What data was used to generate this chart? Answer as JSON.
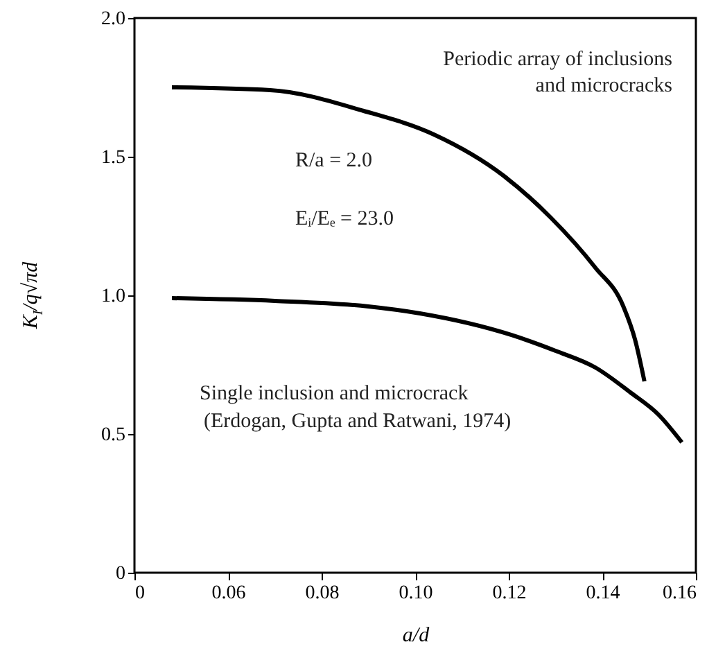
{
  "chart_data": {
    "type": "line",
    "xlabel": "a/d",
    "ylabel": "K$_{I}$/q√πd",
    "x": [
      0.048,
      0.069,
      0.089,
      0.104,
      0.119,
      0.129,
      0.1385,
      0.1445,
      0.147,
      0.149
    ],
    "series": [
      {
        "name": "Periodic array of inclusions and microcracks",
        "color": "#000000",
        "values": [
          1.75,
          1.74,
          1.665,
          1.58,
          1.43,
          1.28,
          1.1,
          0.96,
          0.84,
          0.69
        ]
      },
      {
        "name": "Single inclusion and microcrack",
        "color": "#000000",
        "x": [
          0.048,
          0.07,
          0.09,
          0.101,
          0.1206,
          0.13,
          0.1385,
          0.146,
          0.152,
          0.157
        ],
        "values": [
          0.99,
          0.98,
          0.96,
          0.935,
          0.857,
          0.8,
          0.74,
          0.65,
          0.57,
          0.47
        ]
      }
    ],
    "annotations": [
      "R/a = 2.0",
      "Eᵢ/Eₑ = 23.0",
      "(Erdogan, Gupta and Ratwani, 1974)"
    ],
    "xlim": [
      0.04,
      0.16
    ],
    "xticks": [
      {
        "value": 0.04,
        "label": "0"
      },
      0.06,
      0.08,
      {
        "value": 0.1,
        "label": "0.10"
      },
      0.12,
      0.14,
      0.16
    ],
    "ylim": [
      0,
      2
    ],
    "yticks": [
      0,
      0.5,
      {
        "value": 1,
        "label": "1.0"
      },
      1.5,
      {
        "value": 2,
        "label": "2.0"
      }
    ],
    "line_style": "solid",
    "marker": "none"
  }
}
